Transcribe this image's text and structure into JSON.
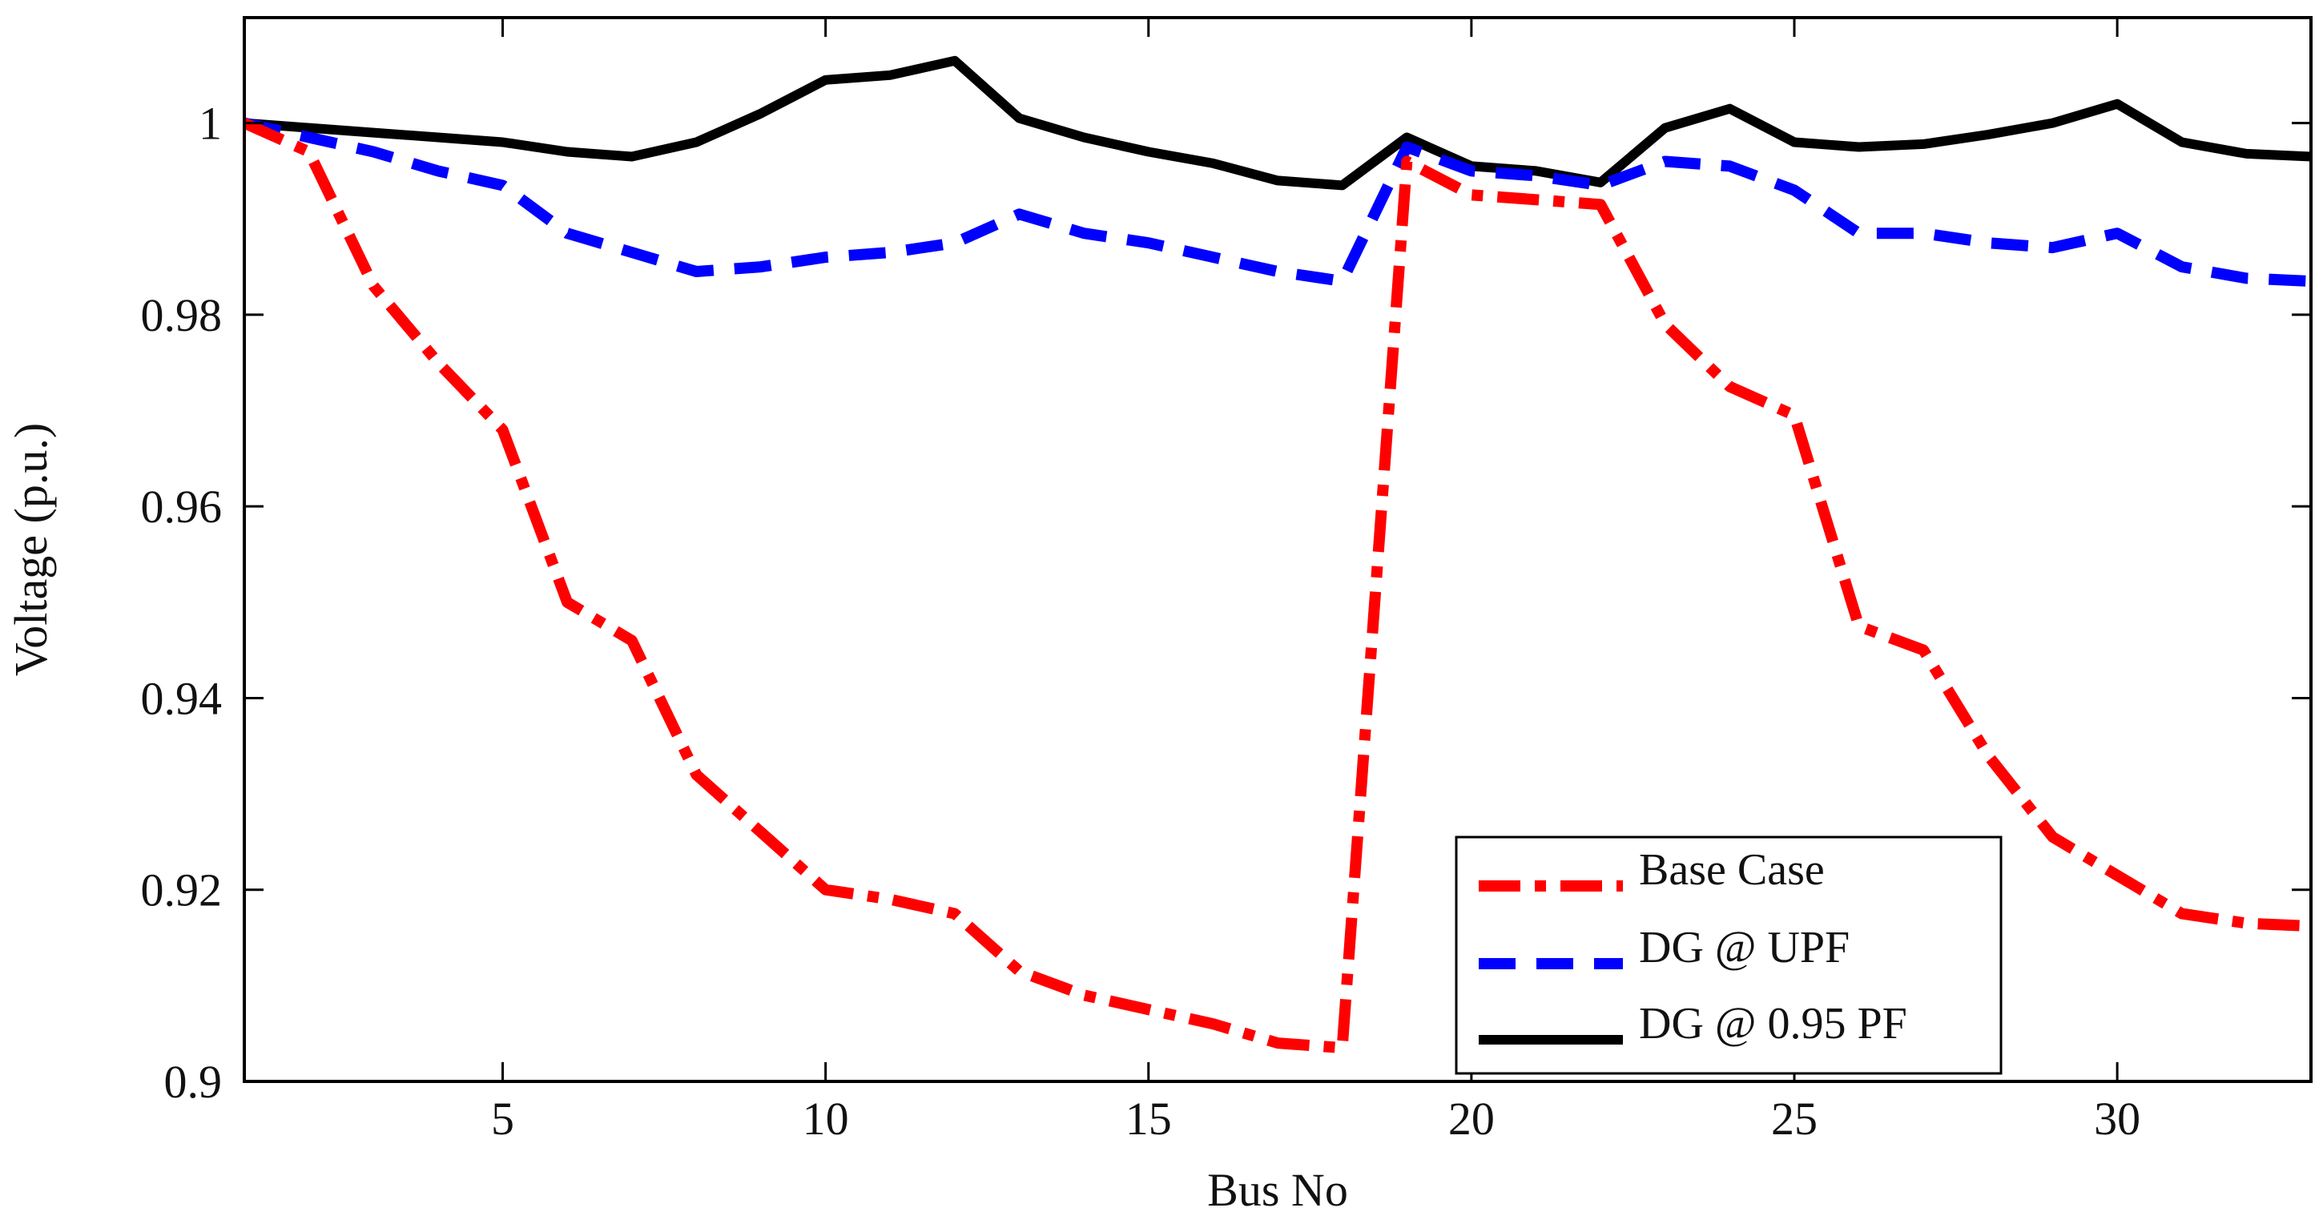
{
  "chart_data": {
    "type": "line",
    "title": "",
    "xlabel": "Bus No",
    "ylabel": "Voltage (p.u.)",
    "xlim": [
      1,
      33
    ],
    "ylim": [
      0.9,
      1.011
    ],
    "xticks": [
      5,
      10,
      15,
      20,
      25,
      30
    ],
    "yticks": [
      0.9,
      0.92,
      0.94,
      0.96,
      0.98,
      1
    ],
    "ytick_labels": [
      "0.9",
      "0.92",
      "0.94",
      "0.96",
      "0.98",
      "1"
    ],
    "xtick_labels": [
      "5",
      "10",
      "15",
      "20",
      "25",
      "30"
    ],
    "grid": false,
    "legend_position": "bottom-right",
    "x": [
      1,
      2,
      3,
      4,
      5,
      6,
      7,
      8,
      9,
      10,
      11,
      12,
      13,
      14,
      15,
      16,
      17,
      18,
      19,
      20,
      21,
      22,
      23,
      24,
      25,
      26,
      27,
      28,
      29,
      30,
      31,
      32,
      33
    ],
    "series": [
      {
        "name": "Base Case",
        "color": "#ff0000",
        "style": "dashdot",
        "values": [
          1.0,
          0.997,
          0.983,
          0.975,
          0.968,
          0.95,
          0.946,
          0.932,
          0.926,
          0.92,
          0.919,
          0.9175,
          0.9115,
          0.909,
          0.9075,
          0.906,
          0.904,
          0.9035,
          0.996,
          0.9925,
          0.992,
          0.9915,
          0.979,
          0.9725,
          0.9695,
          0.9475,
          0.945,
          0.934,
          0.9255,
          0.9215,
          0.9175,
          0.9165,
          0.9162
        ]
      },
      {
        "name": "DG @ UPF",
        "color": "#0000ff",
        "style": "dashed",
        "values": [
          1.0,
          0.9985,
          0.997,
          0.995,
          0.9935,
          0.9885,
          0.9865,
          0.9845,
          0.985,
          0.986,
          0.9865,
          0.9875,
          0.9905,
          0.9885,
          0.9875,
          0.986,
          0.9845,
          0.9835,
          0.9975,
          0.995,
          0.9945,
          0.9935,
          0.996,
          0.9955,
          0.993,
          0.9885,
          0.9885,
          0.9875,
          0.987,
          0.9885,
          0.985,
          0.9838,
          0.9835
        ]
      },
      {
        "name": "DG @ 0.95 PF",
        "color": "#000000",
        "style": "solid",
        "values": [
          1.0,
          0.9995,
          0.999,
          0.9985,
          0.998,
          0.997,
          0.9965,
          0.998,
          1.001,
          1.0045,
          1.005,
          1.0065,
          1.0005,
          0.9985,
          0.997,
          0.9958,
          0.994,
          0.9935,
          0.9985,
          0.9955,
          0.995,
          0.9938,
          0.9995,
          1.0015,
          0.998,
          0.9975,
          0.9978,
          0.9988,
          1.0,
          1.002,
          0.998,
          0.9968,
          0.9965
        ]
      }
    ]
  }
}
